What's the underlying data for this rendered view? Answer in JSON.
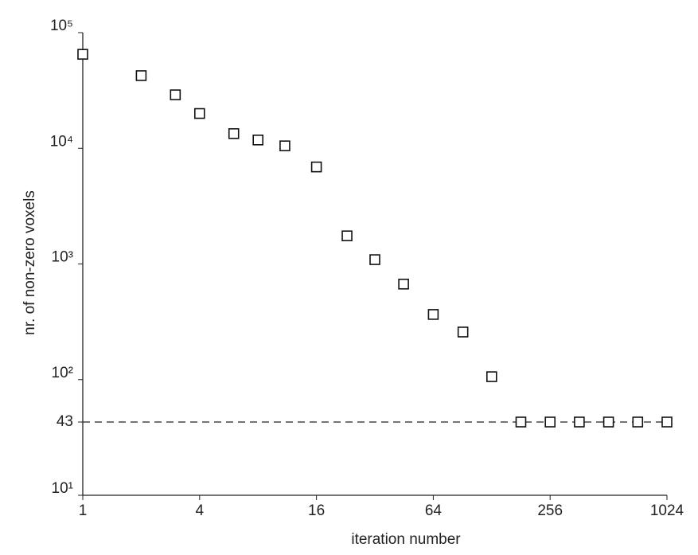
{
  "chart_data": {
    "type": "scatter",
    "x_label": "iteration number",
    "y_label": "nr. of non-zero voxels",
    "x": [
      1,
      2,
      3,
      4,
      6,
      8,
      11,
      16,
      23,
      32,
      45,
      64,
      91,
      128,
      181,
      256,
      362,
      512,
      724,
      1024
    ],
    "series": [
      {
        "color": "#111111",
        "values": [
          65000,
          42500,
          29000,
          20000,
          13400,
          11800,
          10500,
          6900,
          1750,
          1090,
          670,
          366,
          258,
          106,
          43,
          43,
          43,
          43,
          43,
          43
        ]
      }
    ],
    "hline": 43,
    "xscale": "log",
    "yscale": "log",
    "xlim": [
      1,
      1024
    ],
    "ylim": [
      10,
      100000
    ],
    "xticks": [
      1,
      4,
      16,
      64,
      256,
      1024
    ],
    "yticks": [
      {
        "value": 10,
        "label": "10¹"
      },
      43,
      {
        "value": 100,
        "label": "10²"
      },
      {
        "value": 1000,
        "label": "10³"
      },
      {
        "value": 10000,
        "label": "10⁴"
      },
      {
        "value": 100000,
        "label": "10⁵"
      }
    ],
    "grid": false
  }
}
